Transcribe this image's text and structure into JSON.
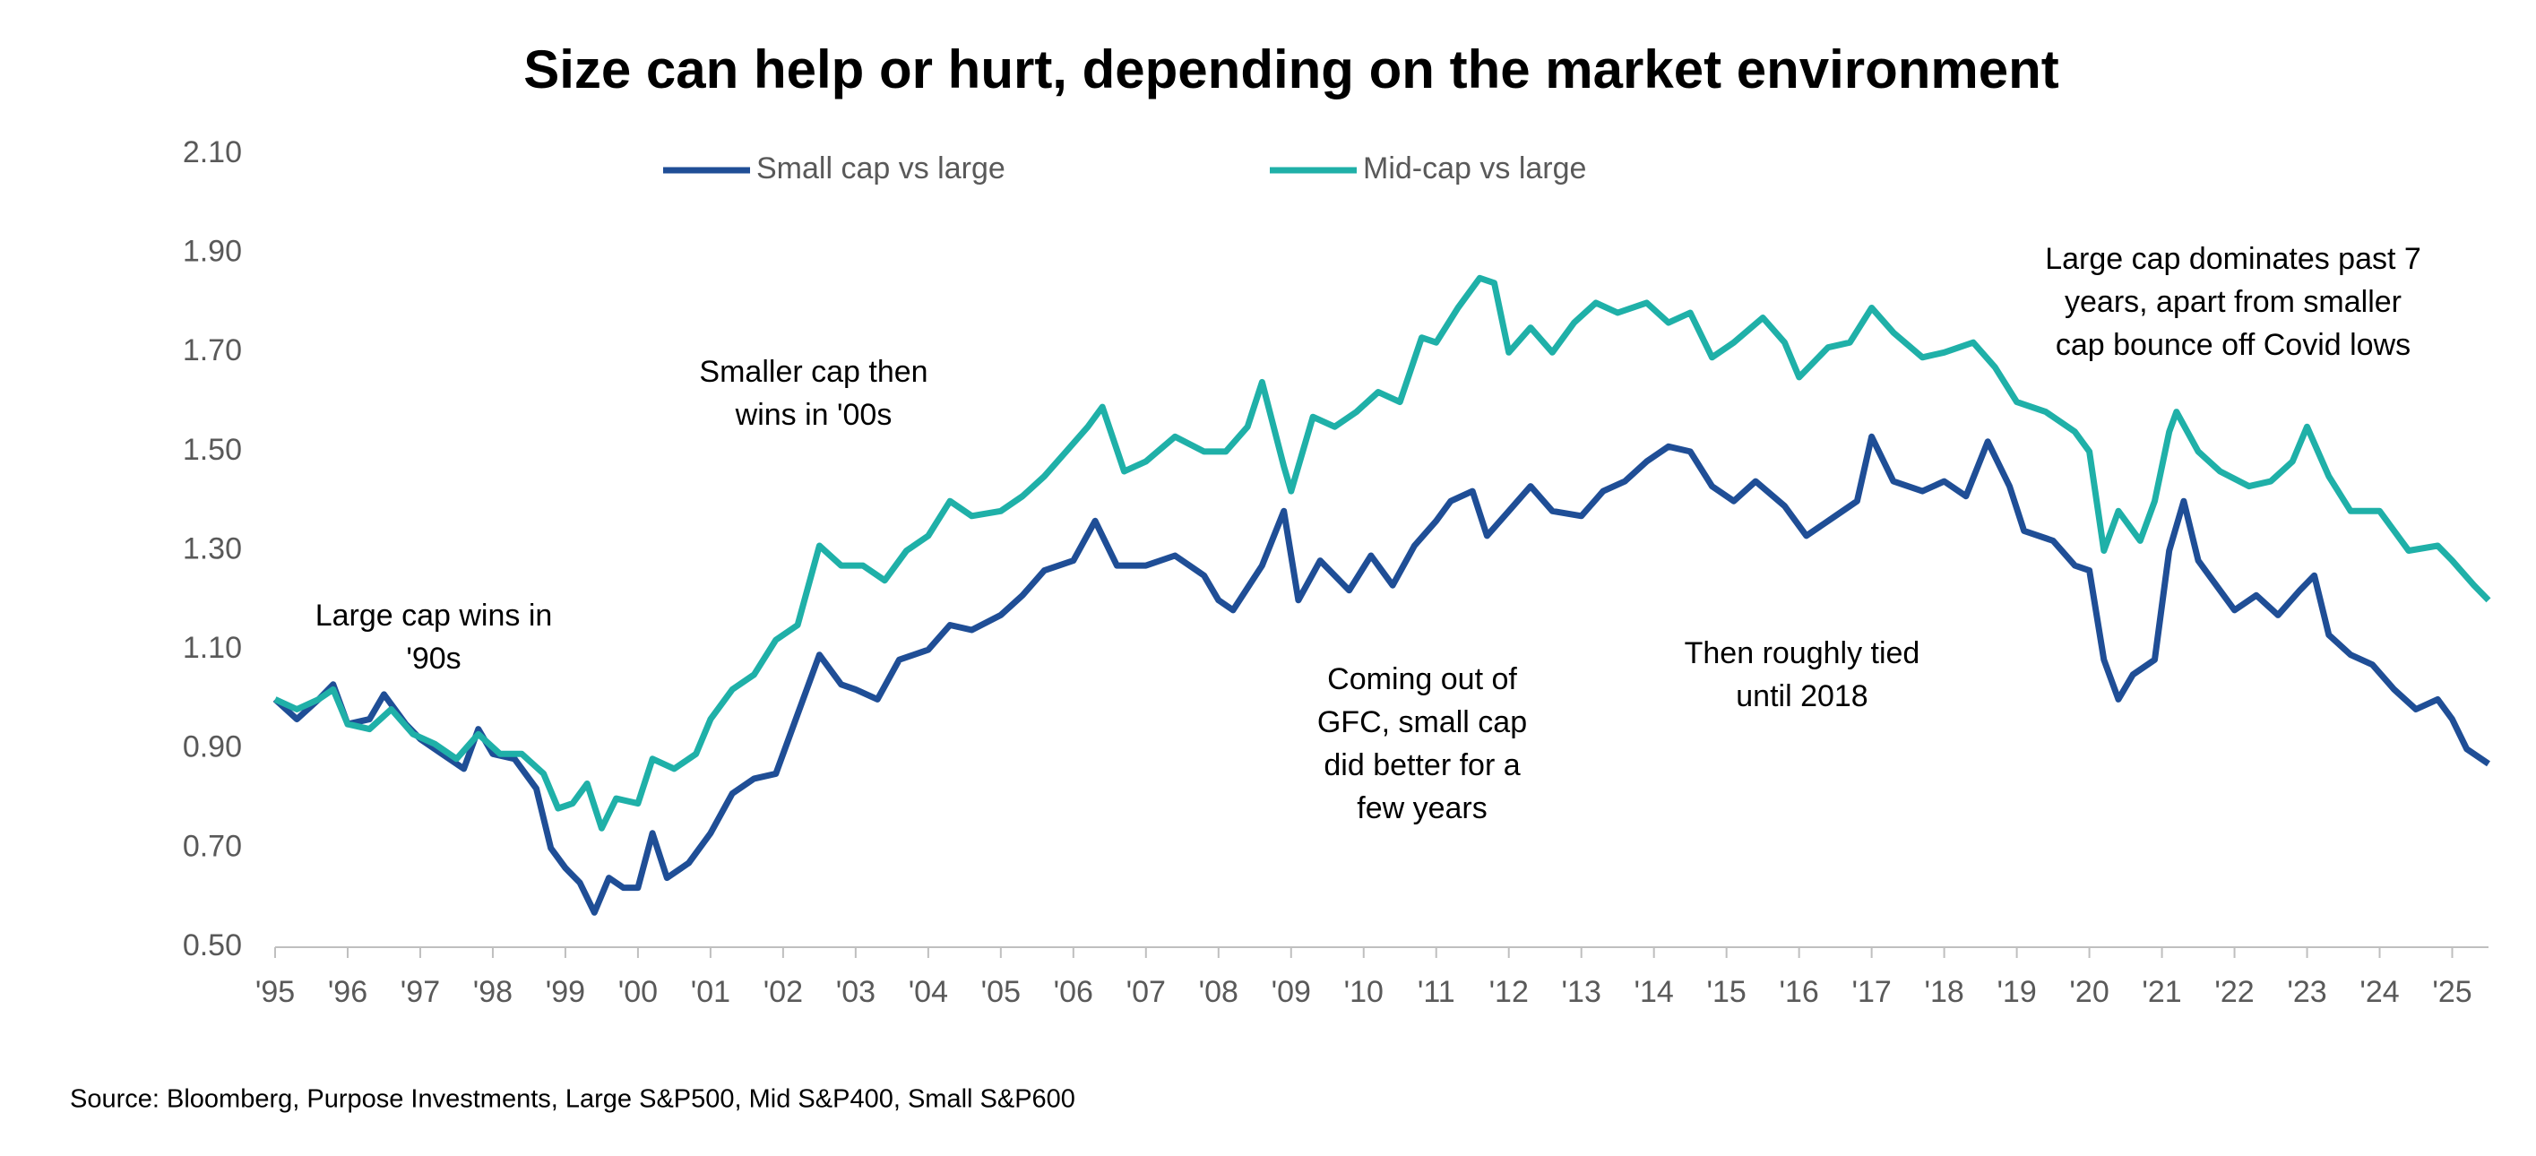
{
  "chart_data": {
    "type": "line",
    "title": "Size can help or hurt, depending on the market environment",
    "source": "Source: Bloomberg, Purpose Investments, Large S&P500, Mid S&P400, Small S&P600",
    "xlim": [
      1995,
      2025.5
    ],
    "xticks": [
      {
        "value": 1995,
        "label": "'95"
      },
      {
        "value": 1996,
        "label": "'96"
      },
      {
        "value": 1997,
        "label": "'97"
      },
      {
        "value": 1998,
        "label": "'98"
      },
      {
        "value": 1999,
        "label": "'99"
      },
      {
        "value": 2000,
        "label": "'00"
      },
      {
        "value": 2001,
        "label": "'01"
      },
      {
        "value": 2002,
        "label": "'02"
      },
      {
        "value": 2003,
        "label": "'03"
      },
      {
        "value": 2004,
        "label": "'04"
      },
      {
        "value": 2005,
        "label": "'05"
      },
      {
        "value": 2006,
        "label": "'06"
      },
      {
        "value": 2007,
        "label": "'07"
      },
      {
        "value": 2008,
        "label": "'08"
      },
      {
        "value": 2009,
        "label": "'09"
      },
      {
        "value": 2010,
        "label": "'10"
      },
      {
        "value": 2011,
        "label": "'11"
      },
      {
        "value": 2012,
        "label": "'12"
      },
      {
        "value": 2013,
        "label": "'13"
      },
      {
        "value": 2014,
        "label": "'14"
      },
      {
        "value": 2015,
        "label": "'15"
      },
      {
        "value": 2016,
        "label": "'16"
      },
      {
        "value": 2017,
        "label": "'17"
      },
      {
        "value": 2018,
        "label": "'18"
      },
      {
        "value": 2019,
        "label": "'19"
      },
      {
        "value": 2020,
        "label": "'20"
      },
      {
        "value": 2021,
        "label": "'21"
      },
      {
        "value": 2022,
        "label": "'22"
      },
      {
        "value": 2023,
        "label": "'23"
      },
      {
        "value": 2024,
        "label": "'24"
      },
      {
        "value": 2025,
        "label": "'25"
      }
    ],
    "ylim": [
      0.5,
      2.1
    ],
    "yticks": [
      {
        "value": 0.5,
        "label": "0.50"
      },
      {
        "value": 0.7,
        "label": "0.70"
      },
      {
        "value": 0.9,
        "label": "0.90"
      },
      {
        "value": 1.1,
        "label": "1.10"
      },
      {
        "value": 1.3,
        "label": "1.30"
      },
      {
        "value": 1.5,
        "label": "1.50"
      },
      {
        "value": 1.7,
        "label": "1.70"
      },
      {
        "value": 1.9,
        "label": "1.90"
      },
      {
        "value": 2.1,
        "label": "2.10"
      }
    ],
    "grid": false,
    "series": [
      {
        "name": "Small cap vs large",
        "color": "#1f4e96",
        "x": [
          1995.0,
          1995.3,
          1995.6,
          1995.8,
          1996.0,
          1996.3,
          1996.5,
          1996.8,
          1997.0,
          1997.3,
          1997.6,
          1997.8,
          1998.0,
          1998.3,
          1998.6,
          1998.8,
          1999.0,
          1999.2,
          1999.4,
          1999.6,
          1999.8,
          2000.0,
          2000.2,
          2000.4,
          2000.7,
          2001.0,
          2001.3,
          2001.6,
          2001.9,
          2002.2,
          2002.5,
          2002.8,
          2003.0,
          2003.3,
          2003.6,
          2004.0,
          2004.3,
          2004.6,
          2005.0,
          2005.3,
          2005.6,
          2006.0,
          2006.3,
          2006.6,
          2007.0,
          2007.4,
          2007.8,
          2008.0,
          2008.2,
          2008.6,
          2008.9,
          2009.1,
          2009.4,
          2009.8,
          2010.1,
          2010.4,
          2010.7,
          2011.0,
          2011.2,
          2011.5,
          2011.7,
          2012.0,
          2012.3,
          2012.6,
          2013.0,
          2013.3,
          2013.6,
          2013.9,
          2014.2,
          2014.5,
          2014.8,
          2015.1,
          2015.4,
          2015.8,
          2016.1,
          2016.5,
          2016.8,
          2017.0,
          2017.3,
          2017.7,
          2018.0,
          2018.3,
          2018.6,
          2018.9,
          2019.1,
          2019.5,
          2019.8,
          2020.0,
          2020.2,
          2020.4,
          2020.6,
          2020.9,
          2021.1,
          2021.3,
          2021.5,
          2021.8,
          2022.0,
          2022.3,
          2022.6,
          2022.9,
          2023.1,
          2023.3,
          2023.6,
          2023.9,
          2024.2,
          2024.5,
          2024.8,
          2025.0,
          2025.2,
          2025.5
        ],
        "values": [
          1.0,
          0.96,
          1.0,
          1.03,
          0.95,
          0.96,
          1.01,
          0.95,
          0.92,
          0.89,
          0.86,
          0.94,
          0.89,
          0.88,
          0.82,
          0.7,
          0.66,
          0.63,
          0.57,
          0.64,
          0.62,
          0.62,
          0.73,
          0.64,
          0.67,
          0.73,
          0.81,
          0.84,
          0.85,
          0.97,
          1.09,
          1.03,
          1.02,
          1.0,
          1.08,
          1.1,
          1.15,
          1.14,
          1.17,
          1.21,
          1.26,
          1.28,
          1.36,
          1.27,
          1.27,
          1.29,
          1.25,
          1.2,
          1.18,
          1.27,
          1.38,
          1.2,
          1.28,
          1.22,
          1.29,
          1.23,
          1.31,
          1.36,
          1.4,
          1.42,
          1.33,
          1.38,
          1.43,
          1.38,
          1.37,
          1.42,
          1.44,
          1.48,
          1.51,
          1.5,
          1.43,
          1.4,
          1.44,
          1.39,
          1.33,
          1.37,
          1.4,
          1.53,
          1.44,
          1.42,
          1.44,
          1.41,
          1.52,
          1.43,
          1.34,
          1.32,
          1.27,
          1.26,
          1.08,
          1.0,
          1.05,
          1.08,
          1.3,
          1.4,
          1.28,
          1.22,
          1.18,
          1.21,
          1.17,
          1.22,
          1.25,
          1.13,
          1.09,
          1.07,
          1.02,
          0.98,
          1.0,
          0.96,
          0.9,
          0.87
        ]
      },
      {
        "name": "Mid-cap vs large",
        "color": "#1fb0a8",
        "x": [
          1995.0,
          1995.3,
          1995.6,
          1995.8,
          1996.0,
          1996.3,
          1996.6,
          1996.9,
          1997.2,
          1997.5,
          1997.8,
          1998.1,
          1998.4,
          1998.7,
          1998.9,
          1999.1,
          1999.3,
          1999.5,
          1999.7,
          2000.0,
          2000.2,
          2000.5,
          2000.8,
          2001.0,
          2001.3,
          2001.6,
          2001.9,
          2002.2,
          2002.5,
          2002.8,
          2003.1,
          2003.4,
          2003.7,
          2004.0,
          2004.3,
          2004.6,
          2005.0,
          2005.3,
          2005.6,
          2005.9,
          2006.2,
          2006.4,
          2006.7,
          2007.0,
          2007.4,
          2007.8,
          2008.1,
          2008.4,
          2008.6,
          2008.9,
          2009.0,
          2009.3,
          2009.6,
          2009.9,
          2010.2,
          2010.5,
          2010.8,
          2011.0,
          2011.3,
          2011.6,
          2011.8,
          2012.0,
          2012.3,
          2012.6,
          2012.9,
          2013.2,
          2013.5,
          2013.9,
          2014.2,
          2014.5,
          2014.8,
          2015.1,
          2015.5,
          2015.8,
          2016.0,
          2016.4,
          2016.7,
          2017.0,
          2017.3,
          2017.7,
          2018.0,
          2018.4,
          2018.7,
          2019.0,
          2019.4,
          2019.8,
          2020.0,
          2020.2,
          2020.4,
          2020.7,
          2020.9,
          2021.1,
          2021.2,
          2021.5,
          2021.8,
          2022.2,
          2022.5,
          2022.8,
          2023.0,
          2023.3,
          2023.6,
          2024.0,
          2024.4,
          2024.8,
          2025.0,
          2025.3,
          2025.5
        ],
        "values": [
          1.0,
          0.98,
          1.0,
          1.02,
          0.95,
          0.94,
          0.98,
          0.93,
          0.91,
          0.88,
          0.93,
          0.89,
          0.89,
          0.85,
          0.78,
          0.79,
          0.83,
          0.74,
          0.8,
          0.79,
          0.88,
          0.86,
          0.89,
          0.96,
          1.02,
          1.05,
          1.12,
          1.15,
          1.31,
          1.27,
          1.27,
          1.24,
          1.3,
          1.33,
          1.4,
          1.37,
          1.38,
          1.41,
          1.45,
          1.5,
          1.55,
          1.59,
          1.46,
          1.48,
          1.53,
          1.5,
          1.5,
          1.55,
          1.64,
          1.47,
          1.42,
          1.57,
          1.55,
          1.58,
          1.62,
          1.6,
          1.73,
          1.72,
          1.79,
          1.85,
          1.84,
          1.7,
          1.75,
          1.7,
          1.76,
          1.8,
          1.78,
          1.8,
          1.76,
          1.78,
          1.69,
          1.72,
          1.77,
          1.72,
          1.65,
          1.71,
          1.72,
          1.79,
          1.74,
          1.69,
          1.7,
          1.72,
          1.67,
          1.6,
          1.58,
          1.54,
          1.5,
          1.3,
          1.38,
          1.32,
          1.4,
          1.54,
          1.58,
          1.5,
          1.46,
          1.43,
          1.44,
          1.48,
          1.55,
          1.45,
          1.38,
          1.38,
          1.3,
          1.31,
          1.28,
          1.23,
          1.2
        ]
      }
    ],
    "annotations": [
      {
        "lines": [
          "Large cap wins in",
          "'90s"
        ]
      },
      {
        "lines": [
          "Smaller cap then",
          "wins in '00s"
        ]
      },
      {
        "lines": [
          "Coming out of",
          "GFC, small cap",
          "did better for a",
          "few years"
        ]
      },
      {
        "lines": [
          "Then roughly tied",
          "until 2018"
        ]
      },
      {
        "lines": [
          "Large cap dominates past 7",
          "years, apart from smaller",
          "cap bounce off Covid lows"
        ]
      }
    ]
  }
}
